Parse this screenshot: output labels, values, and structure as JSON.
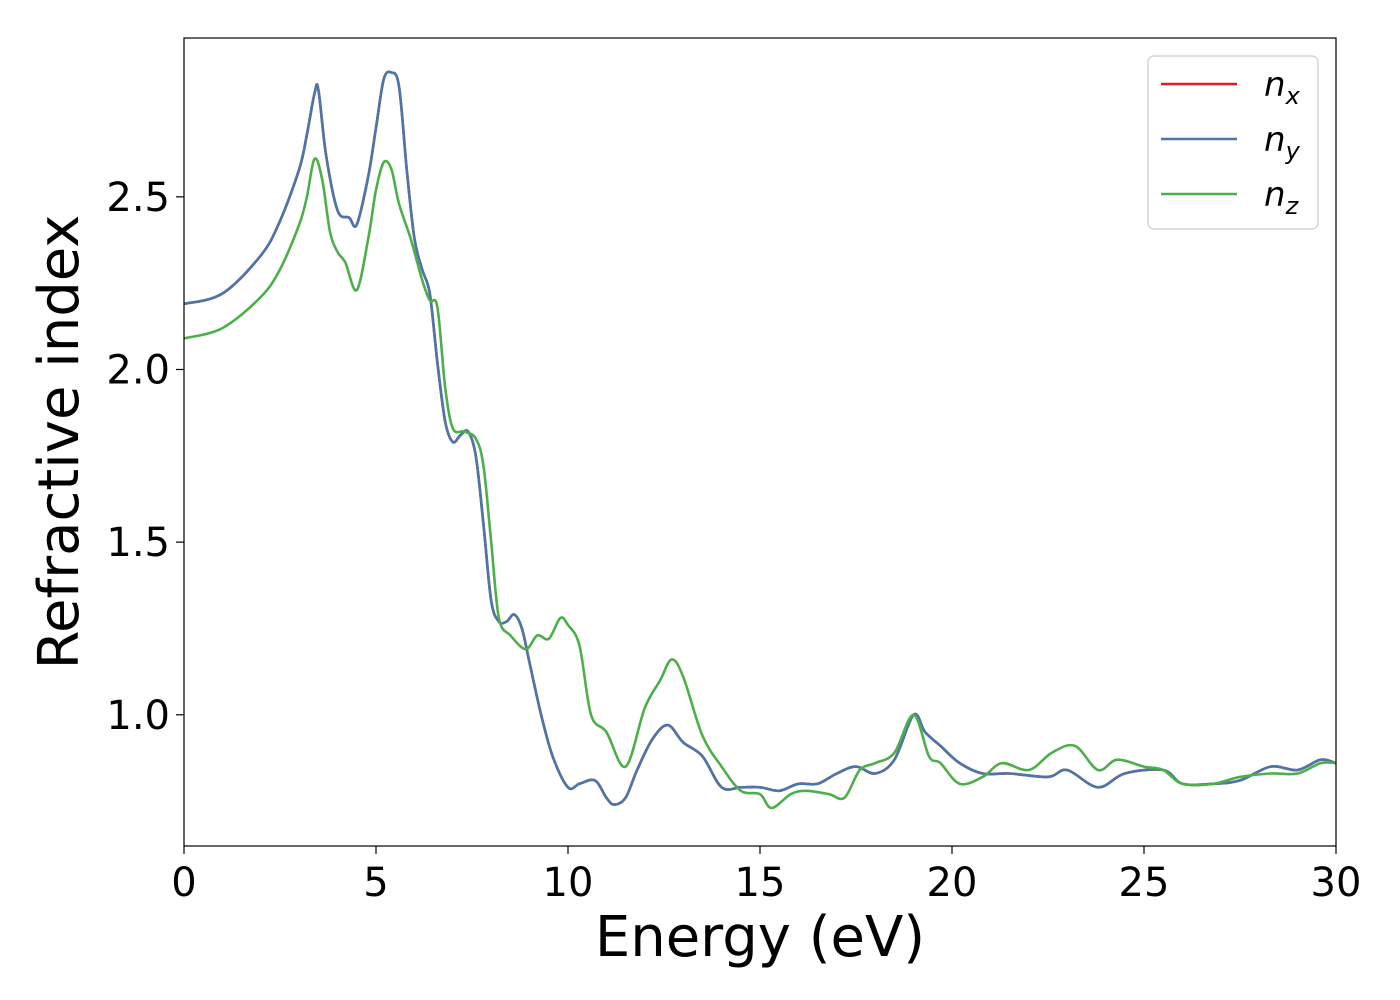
{
  "chart_data": {
    "type": "line",
    "title": "",
    "xlabel": "Energy (eV)",
    "ylabel": "Refractive index",
    "xlim": [
      0,
      30
    ],
    "ylim": [
      0.62,
      2.96
    ],
    "xticks": [
      "0",
      "5",
      "10",
      "15",
      "20",
      "25",
      "30"
    ],
    "yticks": [
      "1.0",
      "1.5",
      "2.0",
      "2.5"
    ],
    "grid": false,
    "legend_position": "top-right",
    "series": [
      {
        "name": "n_x",
        "legend_base": "n",
        "legend_sub": "x",
        "color": "#e41a1c",
        "x": [
          0,
          1,
          2,
          2.5,
          3.0,
          3.2,
          3.4,
          3.5,
          3.7,
          4.0,
          4.3,
          4.5,
          4.8,
          5.0,
          5.2,
          5.4,
          5.6,
          5.8,
          6.0,
          6.2,
          6.4,
          6.6,
          6.8,
          7.0,
          7.2,
          7.4,
          7.6,
          7.8,
          8.0,
          8.2,
          8.4,
          8.6,
          8.8,
          9.0,
          9.3,
          9.6,
          10.0,
          10.3,
          10.7,
          11.0,
          11.2,
          11.5,
          11.8,
          12.2,
          12.6,
          13.0,
          13.5,
          14.0,
          14.5,
          15.0,
          15.5,
          16.0,
          16.5,
          17.0,
          17.5,
          18.0,
          18.5,
          19.0,
          19.3,
          19.7,
          20.2,
          20.8,
          21.5,
          22.5,
          23.0,
          23.8,
          24.5,
          25.5,
          26.0,
          26.8,
          27.5,
          28.3,
          29.0,
          29.6,
          30.0
        ],
        "values": [
          2.19,
          2.22,
          2.33,
          2.43,
          2.58,
          2.68,
          2.8,
          2.81,
          2.62,
          2.46,
          2.44,
          2.42,
          2.56,
          2.7,
          2.84,
          2.86,
          2.82,
          2.58,
          2.38,
          2.29,
          2.22,
          2.02,
          1.85,
          1.79,
          1.81,
          1.82,
          1.75,
          1.55,
          1.33,
          1.27,
          1.27,
          1.29,
          1.25,
          1.15,
          1.0,
          0.88,
          0.79,
          0.8,
          0.81,
          0.76,
          0.74,
          0.76,
          0.84,
          0.93,
          0.97,
          0.92,
          0.88,
          0.79,
          0.79,
          0.79,
          0.78,
          0.8,
          0.8,
          0.83,
          0.85,
          0.83,
          0.87,
          1.0,
          0.95,
          0.91,
          0.86,
          0.83,
          0.83,
          0.82,
          0.84,
          0.79,
          0.83,
          0.84,
          0.8,
          0.8,
          0.81,
          0.85,
          0.84,
          0.87,
          0.86
        ]
      },
      {
        "name": "n_y",
        "legend_base": "n",
        "legend_sub": "y",
        "color": "#4a77aa",
        "x": [
          0,
          1,
          2,
          2.5,
          3.0,
          3.2,
          3.4,
          3.5,
          3.7,
          4.0,
          4.3,
          4.5,
          4.8,
          5.0,
          5.2,
          5.4,
          5.6,
          5.8,
          6.0,
          6.2,
          6.4,
          6.6,
          6.8,
          7.0,
          7.2,
          7.4,
          7.6,
          7.8,
          8.0,
          8.2,
          8.4,
          8.6,
          8.8,
          9.0,
          9.3,
          9.6,
          10.0,
          10.3,
          10.7,
          11.0,
          11.2,
          11.5,
          11.8,
          12.2,
          12.6,
          13.0,
          13.5,
          14.0,
          14.5,
          15.0,
          15.5,
          16.0,
          16.5,
          17.0,
          17.5,
          18.0,
          18.5,
          19.0,
          19.3,
          19.7,
          20.2,
          20.8,
          21.5,
          22.5,
          23.0,
          23.8,
          24.5,
          25.5,
          26.0,
          26.8,
          27.5,
          28.3,
          29.0,
          29.6,
          30.0
        ],
        "values": [
          2.19,
          2.22,
          2.33,
          2.43,
          2.58,
          2.68,
          2.8,
          2.81,
          2.62,
          2.46,
          2.44,
          2.42,
          2.56,
          2.7,
          2.84,
          2.86,
          2.82,
          2.58,
          2.38,
          2.29,
          2.22,
          2.02,
          1.85,
          1.79,
          1.81,
          1.82,
          1.75,
          1.55,
          1.33,
          1.27,
          1.27,
          1.29,
          1.25,
          1.15,
          1.0,
          0.88,
          0.79,
          0.8,
          0.81,
          0.76,
          0.74,
          0.76,
          0.84,
          0.93,
          0.97,
          0.92,
          0.88,
          0.79,
          0.79,
          0.79,
          0.78,
          0.8,
          0.8,
          0.83,
          0.85,
          0.83,
          0.87,
          1.0,
          0.95,
          0.91,
          0.86,
          0.83,
          0.83,
          0.82,
          0.84,
          0.79,
          0.83,
          0.84,
          0.8,
          0.8,
          0.81,
          0.85,
          0.84,
          0.87,
          0.86
        ]
      },
      {
        "name": "n_z",
        "legend_base": "n",
        "legend_sub": "z",
        "color": "#4daf4a",
        "x": [
          0,
          1,
          2,
          2.5,
          3.0,
          3.2,
          3.4,
          3.6,
          3.8,
          4.0,
          4.2,
          4.5,
          4.8,
          5.0,
          5.2,
          5.4,
          5.6,
          5.9,
          6.2,
          6.4,
          6.6,
          6.8,
          7.0,
          7.3,
          7.6,
          7.8,
          8.0,
          8.2,
          8.5,
          8.9,
          9.2,
          9.5,
          9.8,
          10.0,
          10.3,
          10.6,
          11.0,
          11.5,
          12.0,
          12.4,
          12.7,
          13.0,
          13.5,
          14.0,
          14.5,
          15.0,
          15.3,
          15.8,
          16.2,
          16.8,
          17.2,
          17.6,
          18.0,
          18.5,
          19.0,
          19.4,
          19.7,
          20.2,
          20.8,
          21.3,
          22.0,
          22.6,
          23.2,
          23.8,
          24.3,
          25.0,
          25.5,
          26.0,
          26.8,
          27.5,
          28.3,
          29.0,
          29.6,
          30.0
        ],
        "values": [
          2.09,
          2.12,
          2.21,
          2.29,
          2.42,
          2.5,
          2.61,
          2.55,
          2.4,
          2.34,
          2.31,
          2.23,
          2.38,
          2.52,
          2.6,
          2.58,
          2.48,
          2.38,
          2.26,
          2.2,
          2.18,
          1.95,
          1.83,
          1.82,
          1.8,
          1.72,
          1.5,
          1.28,
          1.23,
          1.19,
          1.23,
          1.22,
          1.28,
          1.26,
          1.2,
          1.0,
          0.95,
          0.85,
          1.02,
          1.1,
          1.16,
          1.11,
          0.94,
          0.85,
          0.78,
          0.77,
          0.73,
          0.77,
          0.78,
          0.77,
          0.76,
          0.84,
          0.86,
          0.89,
          1.0,
          0.88,
          0.86,
          0.8,
          0.82,
          0.86,
          0.84,
          0.89,
          0.91,
          0.84,
          0.87,
          0.85,
          0.84,
          0.8,
          0.8,
          0.82,
          0.83,
          0.83,
          0.86,
          0.86
        ]
      }
    ]
  }
}
